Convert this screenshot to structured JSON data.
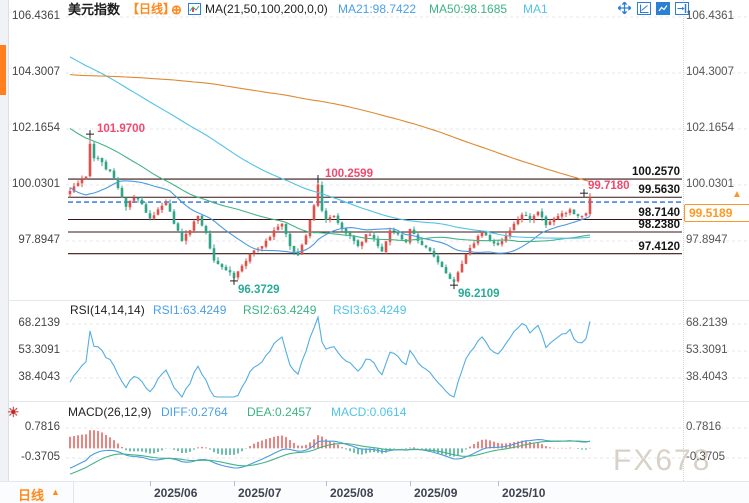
{
  "header": {
    "title": "美元指数",
    "period_tag": "【日线】",
    "add_icon_glyph": "⊕",
    "ma_settings": "MA(21,50,100,200,0,0)",
    "ma21_label": "MA21:98.7422",
    "ma50_label": "MA50:98.1685",
    "ma_extra_label": "MA1",
    "toolbar_icons": [
      "pan-icon",
      "axis-range-icon",
      "auto-fit-icon",
      "dock-right-icon"
    ]
  },
  "colors": {
    "up_candle": "#e14f4a",
    "down_candle": "#2fa487",
    "ma21": "#4a9be0",
    "ma50": "#45b387",
    "ma100": "#52c3e6",
    "ma200": "#dd8a33",
    "level_line": "#3b1515",
    "dashed_line_blue": "#2a6fd6",
    "accent_orange": "#ff8a1e",
    "price_box_orange": "#ff9822",
    "annotation_pink": "#f0486e",
    "annotation_green": "#2aab96",
    "rsi_line": "#54aee2",
    "macd_diff": "#4a9be0",
    "macd_dea": "#45b387",
    "hist_pos": "#e14f4a",
    "hist_neg": "#2fa487",
    "grid": "#e7e7e7",
    "watermark": "#d8d1c8"
  },
  "chart_data": {
    "type": "candlestick",
    "instrument": "美元指数 (US Dollar Index)",
    "timeframe": "日线 (Daily)",
    "x_axis": {
      "labels": [
        "2025/06",
        "2025/07",
        "2025/08",
        "2025/09",
        "2025/10"
      ]
    },
    "main_panel": {
      "y_axis_labels": [
        "106.4361",
        "104.3007",
        "102.1654",
        "100.0301",
        "97.8947"
      ],
      "levels": [
        "100.2570",
        "99.5630",
        "98.7140",
        "98.2380",
        "97.4120"
      ],
      "blue_dashed_level": 99.38,
      "current_price": 99.5189,
      "current_price_label": "99.5189",
      "session_high_label": "99.7180",
      "annotations": [
        {
          "text": "101.9700",
          "day": 5,
          "price": 101.97,
          "side": "above",
          "color": "pink"
        },
        {
          "text": "100.2599",
          "day": 62,
          "price": 100.2599,
          "side": "above",
          "color": "pink"
        },
        {
          "text": "96.3729",
          "day": 41,
          "price": 96.3729,
          "side": "below",
          "color": "green"
        },
        {
          "text": "96.2109",
          "day": 96,
          "price": 96.2109,
          "side": "below",
          "color": "green"
        }
      ],
      "close_anchors": [
        [
          0,
          99.8
        ],
        [
          2,
          100.1
        ],
        [
          4,
          100.35
        ],
        [
          5,
          101.6
        ],
        [
          6,
          101.05
        ],
        [
          8,
          100.9
        ],
        [
          11,
          100.3
        ],
        [
          13,
          99.55
        ],
        [
          14,
          99.2
        ],
        [
          16,
          99.55
        ],
        [
          18,
          99.3
        ],
        [
          20,
          98.75
        ],
        [
          22,
          99.1
        ],
        [
          24,
          99.35
        ],
        [
          26,
          98.55
        ],
        [
          28,
          97.9
        ],
        [
          30,
          98.3
        ],
        [
          32,
          98.85
        ],
        [
          34,
          98.2
        ],
        [
          36,
          97.15
        ],
        [
          38,
          96.9
        ],
        [
          40,
          96.7
        ],
        [
          41,
          96.5
        ],
        [
          43,
          96.95
        ],
        [
          45,
          97.4
        ],
        [
          47,
          97.6
        ],
        [
          49,
          97.9
        ],
        [
          51,
          98.3
        ],
        [
          53,
          98.55
        ],
        [
          55,
          97.7
        ],
        [
          57,
          97.35
        ],
        [
          59,
          98.1
        ],
        [
          61,
          99.25
        ],
        [
          62,
          100.05
        ],
        [
          63,
          99.05
        ],
        [
          64,
          98.7
        ],
        [
          66,
          98.85
        ],
        [
          68,
          98.35
        ],
        [
          70,
          98.1
        ],
        [
          72,
          97.7
        ],
        [
          74,
          98.15
        ],
        [
          76,
          98.0
        ],
        [
          78,
          97.5
        ],
        [
          80,
          98.3
        ],
        [
          82,
          98.15
        ],
        [
          84,
          97.85
        ],
        [
          85,
          98.35
        ],
        [
          87,
          97.9
        ],
        [
          89,
          97.65
        ],
        [
          91,
          97.3
        ],
        [
          93,
          96.9
        ],
        [
          95,
          96.45
        ],
        [
          96,
          96.35
        ],
        [
          97,
          96.7
        ],
        [
          99,
          97.4
        ],
        [
          101,
          97.8
        ],
        [
          103,
          98.25
        ],
        [
          105,
          97.9
        ],
        [
          107,
          97.75
        ],
        [
          109,
          98.1
        ],
        [
          111,
          98.55
        ],
        [
          113,
          98.9
        ],
        [
          115,
          98.7
        ],
        [
          117,
          99.0
        ],
        [
          119,
          98.5
        ],
        [
          121,
          98.75
        ],
        [
          123,
          98.95
        ],
        [
          125,
          99.1
        ],
        [
          127,
          98.85
        ],
        [
          129,
          98.95
        ],
        [
          130,
          99.5189
        ]
      ],
      "prehistory_anchors": [
        [
          -215,
          104.2
        ],
        [
          -185,
          100.9
        ],
        [
          -160,
          101.5
        ],
        [
          -140,
          103.8
        ],
        [
          -120,
          106.2
        ],
        [
          -100,
          108.3
        ],
        [
          -90,
          109.0
        ],
        [
          -75,
          107.8
        ],
        [
          -60,
          106.9
        ],
        [
          -45,
          104.3
        ],
        [
          -30,
          103.8
        ],
        [
          -20,
          102.2
        ],
        [
          -12,
          99.2
        ],
        [
          -9,
          98.3
        ],
        [
          -6,
          99.6
        ],
        [
          -3,
          99.9
        ],
        [
          -1,
          99.7
        ]
      ],
      "special_candles": {
        "5": {
          "high": 101.97
        },
        "41": {
          "low": 96.3729
        },
        "62": {
          "high": 100.2599
        },
        "96": {
          "low": 96.2109
        },
        "130": {
          "open": 98.93,
          "close": 99.5189,
          "high": 99.718,
          "low": 98.85
        }
      }
    },
    "rsi_panel": {
      "header": "RSI(14,14,14)",
      "period": 14,
      "values": [
        {
          "label": "RSI1:63.4249",
          "color": "#4b9fe3"
        },
        {
          "label": "RSI2:63.4249",
          "color": "#3cb384"
        },
        {
          "label": "RSI3:63.4249",
          "color": "#52c3e6"
        }
      ],
      "y_axis_labels": [
        "68.2139",
        "53.3091",
        "38.4043"
      ]
    },
    "macd_panel": {
      "header": "MACD(26,12,9)",
      "params": [
        26,
        12,
        9
      ],
      "diff_label": "DIFF:0.2764",
      "dea_label": "DEA:0.2457",
      "macd_label": "MACD:0.0614",
      "y_axis_labels": [
        "0.7816",
        "-0.3705"
      ]
    }
  },
  "bottom_bar": {
    "period_label": "日线",
    "dropdown_icon": "▲"
  },
  "sidebar": {
    "sun_icon_glyph": "☀"
  },
  "watermark": "FX678"
}
